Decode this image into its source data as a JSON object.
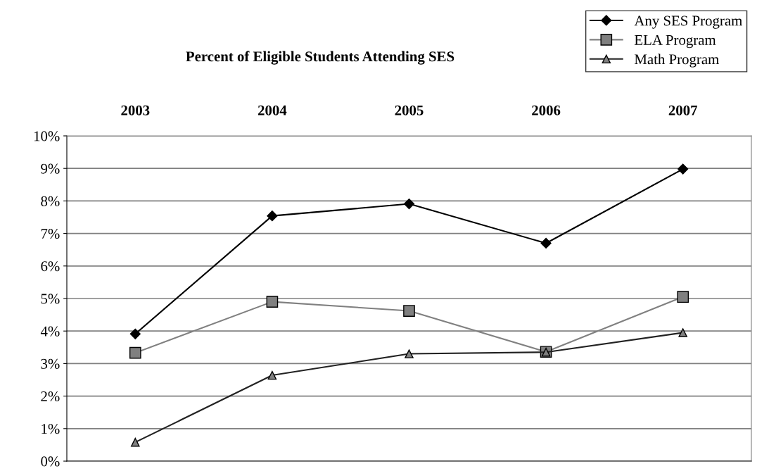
{
  "chart_data": {
    "type": "line",
    "title": "Percent of Eligible Students Attending SES",
    "categories": [
      "2003",
      "2004",
      "2005",
      "2006",
      "2007"
    ],
    "series": [
      {
        "name": "Any SES Program",
        "color": "#000000",
        "marker": "diamond",
        "values": [
          3.91,
          7.54,
          7.91,
          6.7,
          8.98
        ]
      },
      {
        "name": "ELA Program",
        "color": "#808080",
        "marker": "square",
        "values": [
          3.33,
          4.9,
          4.62,
          3.36,
          5.05
        ]
      },
      {
        "name": "Math Program",
        "color": "#222222",
        "marker": "triangle",
        "values": [
          0.58,
          2.64,
          3.3,
          3.35,
          3.95
        ]
      }
    ],
    "ylim": [
      0,
      10
    ],
    "yticks": [
      {
        "value": 0,
        "label": "0%"
      },
      {
        "value": 1,
        "label": "1%"
      },
      {
        "value": 2,
        "label": "2%"
      },
      {
        "value": 3,
        "label": "3%"
      },
      {
        "value": 4,
        "label": "4%"
      },
      {
        "value": 5,
        "label": "5%"
      },
      {
        "value": 6,
        "label": "6%"
      },
      {
        "value": 7,
        "label": "7%"
      },
      {
        "value": 8,
        "label": "8%"
      },
      {
        "value": 9,
        "label": "9%"
      },
      {
        "value": 10,
        "label": "10%"
      }
    ],
    "grid": "y",
    "legend": "top right",
    "line_style": "solid"
  }
}
